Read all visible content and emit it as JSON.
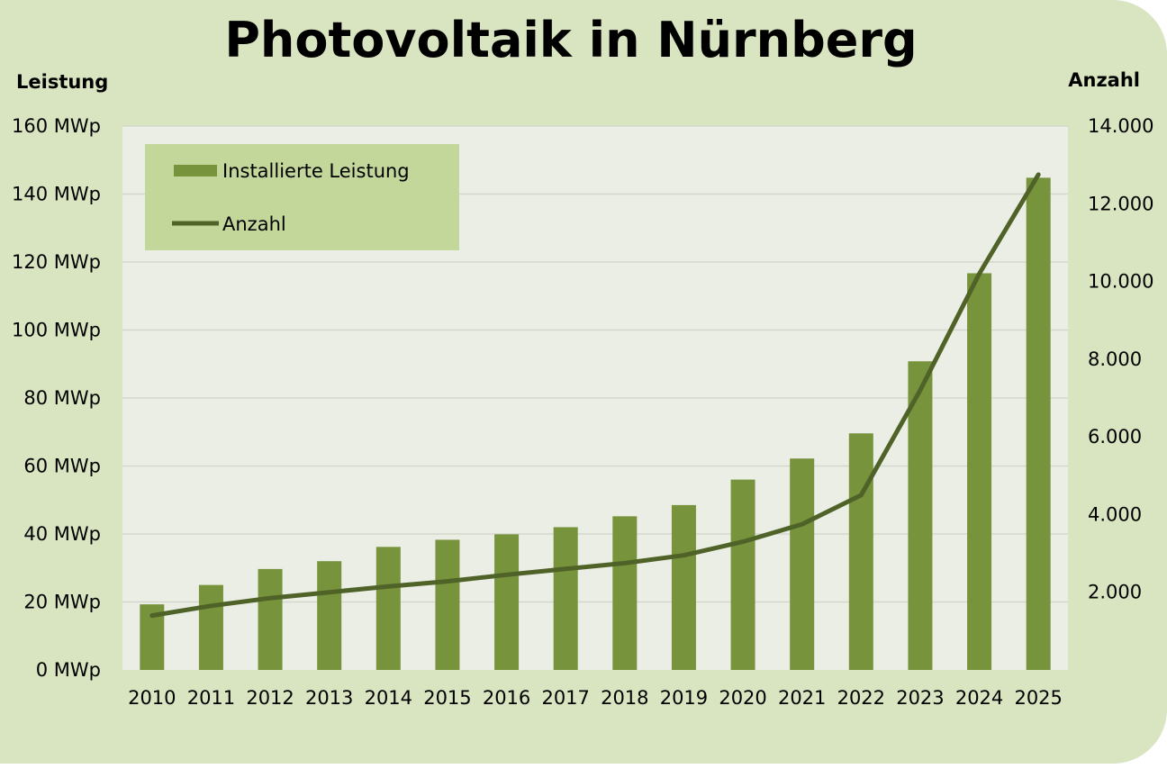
{
  "chart_data": {
    "type": "bar",
    "title": "Photovoltaik in Nürnberg",
    "ylabel": "Leistung",
    "y2label": "Anzahl",
    "categories": [
      "2010",
      "2011",
      "2012",
      "2013",
      "2014",
      "2015",
      "2016",
      "2017",
      "2018",
      "2019",
      "2020",
      "2021",
      "2022",
      "2023",
      "2024",
      "2025"
    ],
    "series": [
      {
        "name": "Installierte Leistung",
        "type": "bar",
        "axis": "left",
        "color": "#77933c",
        "values": [
          19.3,
          25,
          29.7,
          32,
          36.2,
          38.3,
          39.9,
          42,
          45.2,
          48.5,
          56,
          62.2,
          69.6,
          90.8,
          116.7,
          144.8
        ]
      },
      {
        "name": "Anzahl",
        "type": "line",
        "axis": "right",
        "color": "#4f6228",
        "values": [
          1400,
          1650,
          1850,
          2000,
          2150,
          2280,
          2450,
          2600,
          2750,
          2950,
          3300,
          3750,
          4500,
          7200,
          10200,
          12750
        ]
      }
    ],
    "ylim": [
      0,
      160
    ],
    "y2lim": [
      0,
      14000
    ],
    "yticks": [
      "0 MWp",
      "20 MWp",
      "40 MWp",
      "60 MWp",
      "80 MWp",
      "100 MWp",
      "120 MWp",
      "140 MWp",
      "160 MWp"
    ],
    "y2ticks": [
      "2.000",
      "4.000",
      "6.000",
      "8.000",
      "10.000",
      "12.000",
      "14.000"
    ],
    "grid": true,
    "legend_position": "top-left"
  },
  "colors": {
    "background": "#d9e4c0",
    "plot_area": "#ebeee5",
    "legend_box": "#c4d79b",
    "gridline": "#d4d8cc"
  }
}
